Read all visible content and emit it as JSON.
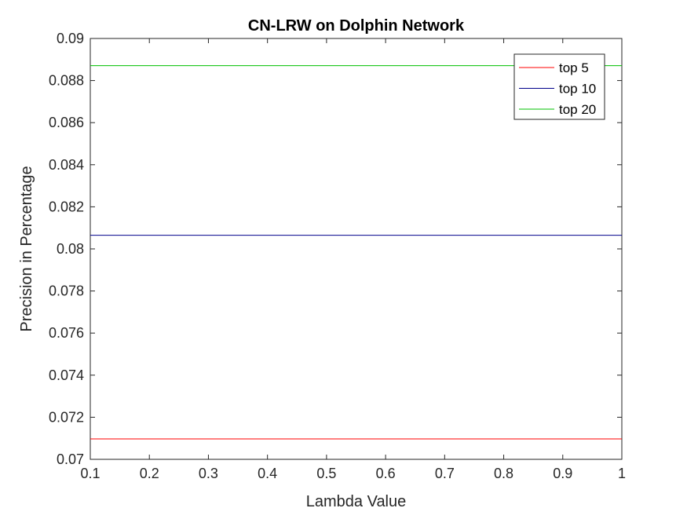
{
  "chart_data": {
    "type": "line",
    "title": "CN-LRW on Dolphin Network",
    "xlabel": "Lambda Value",
    "ylabel": "Precision in Percentage",
    "xlim": [
      0.1,
      1
    ],
    "ylim": [
      0.07,
      0.09
    ],
    "x_ticks": [
      "0.1",
      "0.2",
      "0.3",
      "0.4",
      "0.5",
      "0.6",
      "0.7",
      "0.8",
      "0.9",
      "1"
    ],
    "y_ticks": [
      "0.07",
      "0.072",
      "0.074",
      "0.076",
      "0.078",
      "0.08",
      "0.082",
      "0.084",
      "0.086",
      "0.088",
      "0.09"
    ],
    "x": [
      0.1,
      0.2,
      0.3,
      0.4,
      0.5,
      0.6,
      0.7,
      0.8,
      0.9,
      1.0
    ],
    "series": [
      {
        "name": "top 5",
        "color": "#ff0000",
        "values": [
          0.07097,
          0.07097,
          0.07097,
          0.07097,
          0.07097,
          0.07097,
          0.07097,
          0.07097,
          0.07097,
          0.07097
        ]
      },
      {
        "name": "top 10",
        "color": "#00008b",
        "values": [
          0.08065,
          0.08065,
          0.08065,
          0.08065,
          0.08065,
          0.08065,
          0.08065,
          0.08065,
          0.08065,
          0.08065
        ]
      },
      {
        "name": "top 20",
        "color": "#00c000",
        "values": [
          0.08871,
          0.08871,
          0.08871,
          0.08871,
          0.08871,
          0.08871,
          0.08871,
          0.08871,
          0.08871,
          0.08871
        ]
      }
    ],
    "grid": false,
    "legend_position": "top-right"
  }
}
